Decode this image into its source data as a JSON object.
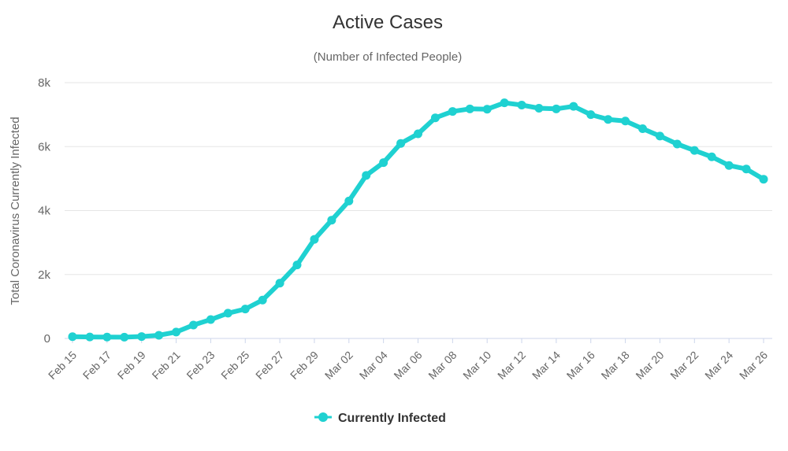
{
  "chart_data": {
    "type": "line",
    "title": "Active Cases",
    "subtitle": "(Number of Infected People)",
    "ylabel": "Total Coronavirus Currently Infected",
    "xlabel": "",
    "ylim": [
      0,
      8000
    ],
    "yticks": [
      0,
      2000,
      4000,
      6000,
      8000
    ],
    "ytick_labels": [
      "0",
      "2k",
      "4k",
      "6k",
      "8k"
    ],
    "x": [
      "Feb 15",
      "Feb 16",
      "Feb 17",
      "Feb 18",
      "Feb 19",
      "Feb 20",
      "Feb 21",
      "Feb 22",
      "Feb 23",
      "Feb 24",
      "Feb 25",
      "Feb 26",
      "Feb 27",
      "Feb 28",
      "Feb 29",
      "Mar 01",
      "Mar 02",
      "Mar 03",
      "Mar 04",
      "Mar 05",
      "Mar 06",
      "Mar 07",
      "Mar 08",
      "Mar 09",
      "Mar 10",
      "Mar 11",
      "Mar 12",
      "Mar 13",
      "Mar 14",
      "Mar 15",
      "Mar 16",
      "Mar 17",
      "Mar 18",
      "Mar 19",
      "Mar 20",
      "Mar 21",
      "Mar 22",
      "Mar 23",
      "Mar 24",
      "Mar 25",
      "Mar 26"
    ],
    "x_tick_labels": [
      "Feb 15",
      "Feb 17",
      "Feb 19",
      "Feb 21",
      "Feb 23",
      "Feb 25",
      "Feb 27",
      "Feb 29",
      "Mar 02",
      "Mar 04",
      "Mar 06",
      "Mar 08",
      "Mar 10",
      "Mar 12",
      "Mar 14",
      "Mar 16",
      "Mar 18",
      "Mar 20",
      "Mar 22",
      "Mar 24",
      "Mar 26"
    ],
    "series": [
      {
        "name": "Currently Infected",
        "color": "#1fd1d1",
        "values": [
          56,
          47,
          42,
          40,
          60,
          100,
          200,
          420,
          590,
          790,
          920,
          1200,
          1730,
          2300,
          3100,
          3700,
          4300,
          5100,
          5500,
          6100,
          6400,
          6900,
          7100,
          7180,
          7170,
          7370,
          7300,
          7200,
          7180,
          7260,
          7000,
          6850,
          6800,
          6560,
          6330,
          6080,
          5880,
          5680,
          5410,
          5300,
          4980
        ]
      }
    ],
    "legend": "bottom-center"
  }
}
